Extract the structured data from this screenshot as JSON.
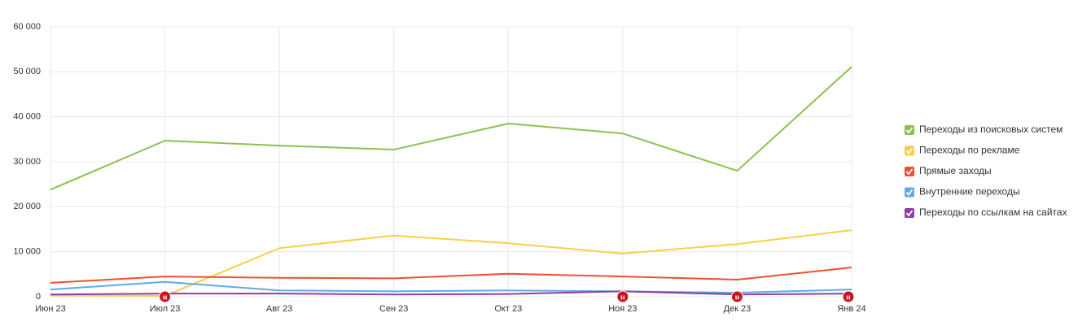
{
  "chart_data": {
    "type": "line",
    "categories": [
      "Июн 23",
      "Июл 23",
      "Авг 23",
      "Сен 23",
      "Окт 23",
      "Ноя 23",
      "Дек 23",
      "Янв 24"
    ],
    "series": [
      {
        "name": "Переходы из поисковых систем",
        "color": "#8cc152",
        "values": [
          23800,
          34700,
          33600,
          32700,
          38500,
          36300,
          28000,
          51100
        ]
      },
      {
        "name": "Переходы по рекламе",
        "color": "#fcce47",
        "values": [
          300,
          200,
          10800,
          13600,
          11900,
          9600,
          11700,
          14800
        ]
      },
      {
        "name": "Прямые заходы",
        "color": "#f04f2f",
        "values": [
          3100,
          4500,
          4200,
          4100,
          5100,
          4500,
          3800,
          6500
        ]
      },
      {
        "name": "Внутренние переходы",
        "color": "#62a9e4",
        "values": [
          1600,
          3300,
          1400,
          1200,
          1400,
          1200,
          900,
          1600
        ]
      },
      {
        "name": "Переходы по ссылкам на сайтах",
        "color": "#8e3fa6",
        "values": [
          500,
          700,
          700,
          500,
          600,
          1200,
          500,
          700
        ]
      }
    ],
    "ylim": [
      0,
      60000
    ],
    "yticks": [
      {
        "value": 0,
        "label": "0"
      },
      {
        "value": 10000,
        "label": "10 000"
      },
      {
        "value": 20000,
        "label": "20 000"
      },
      {
        "value": 30000,
        "label": "30 000"
      },
      {
        "value": 40000,
        "label": "40 000"
      },
      {
        "value": 50000,
        "label": "50 000"
      },
      {
        "value": 60000,
        "label": "60 000"
      }
    ],
    "grid": true,
    "legend": "right",
    "annotations": [
      {
        "category": "Июл 23",
        "text": "н"
      },
      {
        "category": "Ноя 23",
        "text": "н"
      },
      {
        "category": "Дек 23",
        "text": "н"
      },
      {
        "category": "Янв 24",
        "text": "н"
      }
    ]
  }
}
